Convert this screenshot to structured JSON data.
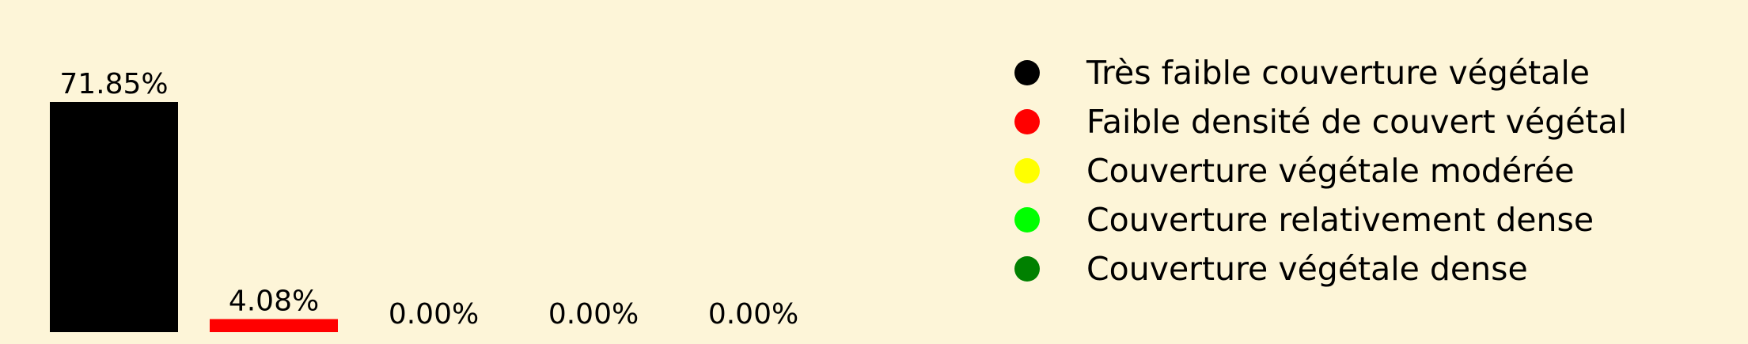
{
  "chart_data": {
    "type": "bar",
    "categories": [
      "Très faible couverture végétale",
      "Faible densité de couvert végétal",
      "Couverture végétale modérée",
      "Couverture relativement dense",
      "Couverture végétale dense"
    ],
    "values": [
      71.85,
      4.08,
      0.0,
      0.0,
      0.0
    ],
    "value_labels": [
      "71.85%",
      "4.08%",
      "0.00%",
      "0.00%",
      "0.00%"
    ],
    "colors": [
      "#000000",
      "#ff0000",
      "#ffff00",
      "#00ff00",
      "#008000"
    ],
    "ylim": [
      0,
      71.85
    ],
    "legend": {
      "placement": "right",
      "entries": [
        {
          "label": "Très faible couverture végétale",
          "color": "#000000"
        },
        {
          "label": "Faible densité de couvert végétal",
          "color": "#ff0000"
        },
        {
          "label": "Couverture végétale modérée",
          "color": "#ffff00"
        },
        {
          "label": "Couverture relativement dense",
          "color": "#00ff00"
        },
        {
          "label": "Couverture végétale dense",
          "color": "#008000"
        }
      ]
    },
    "grid": false,
    "background": "#fdf5d8"
  }
}
